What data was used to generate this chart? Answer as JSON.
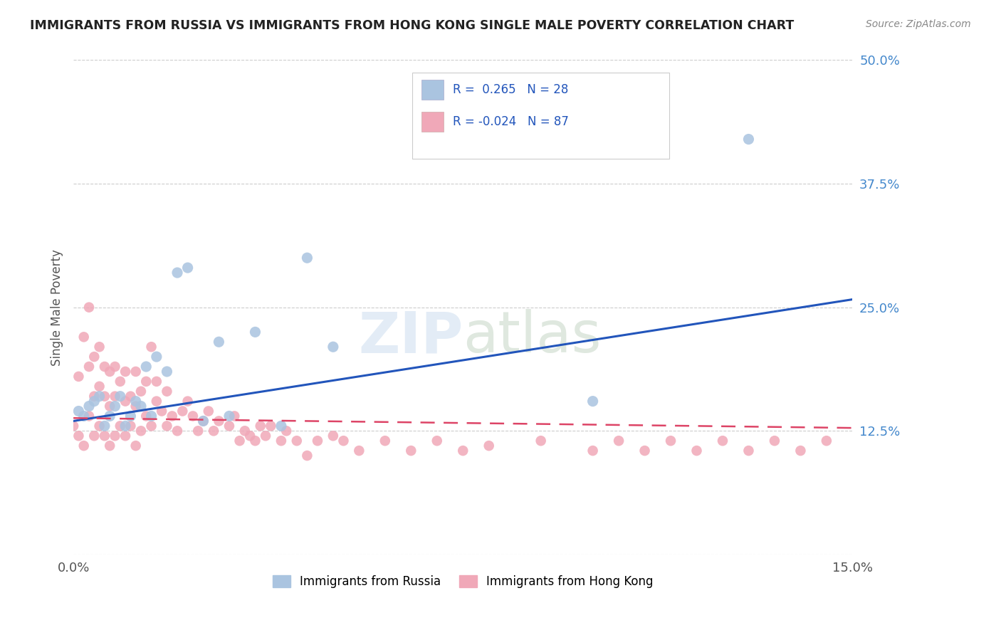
{
  "title": "IMMIGRANTS FROM RUSSIA VS IMMIGRANTS FROM HONG KONG SINGLE MALE POVERTY CORRELATION CHART",
  "source": "Source: ZipAtlas.com",
  "ylabel": "Single Male Poverty",
  "xlim": [
    0.0,
    0.15
  ],
  "ylim": [
    0.0,
    0.5
  ],
  "yticks_right": [
    0.0,
    0.125,
    0.25,
    0.375,
    0.5
  ],
  "ytick_right_labels": [
    "",
    "12.5%",
    "25.0%",
    "37.5%",
    "50.0%"
  ],
  "russia_R": 0.265,
  "russia_N": 28,
  "hk_R": -0.024,
  "hk_N": 87,
  "russia_color": "#aac4e0",
  "hk_color": "#f0a8b8",
  "russia_line_color": "#2255bb",
  "hk_line_color": "#dd4466",
  "legend_russia": "Immigrants from Russia",
  "legend_hk": "Immigrants from Hong Kong",
  "russia_x": [
    0.001,
    0.002,
    0.003,
    0.004,
    0.005,
    0.006,
    0.007,
    0.008,
    0.009,
    0.01,
    0.011,
    0.012,
    0.013,
    0.014,
    0.015,
    0.016,
    0.018,
    0.02,
    0.022,
    0.025,
    0.028,
    0.03,
    0.035,
    0.04,
    0.045,
    0.05,
    0.1,
    0.13
  ],
  "russia_y": [
    0.145,
    0.14,
    0.15,
    0.155,
    0.16,
    0.13,
    0.14,
    0.15,
    0.16,
    0.13,
    0.14,
    0.155,
    0.15,
    0.19,
    0.14,
    0.2,
    0.185,
    0.285,
    0.29,
    0.135,
    0.215,
    0.14,
    0.225,
    0.13,
    0.3,
    0.21,
    0.155,
    0.42
  ],
  "hk_x": [
    0.0,
    0.001,
    0.001,
    0.002,
    0.002,
    0.003,
    0.003,
    0.003,
    0.004,
    0.004,
    0.004,
    0.005,
    0.005,
    0.005,
    0.006,
    0.006,
    0.006,
    0.007,
    0.007,
    0.007,
    0.008,
    0.008,
    0.008,
    0.009,
    0.009,
    0.01,
    0.01,
    0.01,
    0.011,
    0.011,
    0.012,
    0.012,
    0.012,
    0.013,
    0.013,
    0.014,
    0.014,
    0.015,
    0.015,
    0.016,
    0.016,
    0.017,
    0.018,
    0.018,
    0.019,
    0.02,
    0.021,
    0.022,
    0.023,
    0.024,
    0.025,
    0.026,
    0.027,
    0.028,
    0.03,
    0.031,
    0.032,
    0.033,
    0.034,
    0.035,
    0.036,
    0.037,
    0.038,
    0.04,
    0.041,
    0.043,
    0.045,
    0.047,
    0.05,
    0.052,
    0.055,
    0.06,
    0.065,
    0.07,
    0.075,
    0.08,
    0.09,
    0.1,
    0.105,
    0.11,
    0.115,
    0.12,
    0.125,
    0.13,
    0.135,
    0.14,
    0.145
  ],
  "hk_y": [
    0.13,
    0.12,
    0.18,
    0.11,
    0.22,
    0.14,
    0.19,
    0.25,
    0.12,
    0.16,
    0.2,
    0.13,
    0.17,
    0.21,
    0.12,
    0.16,
    0.19,
    0.11,
    0.15,
    0.185,
    0.12,
    0.16,
    0.19,
    0.13,
    0.175,
    0.12,
    0.155,
    0.185,
    0.13,
    0.16,
    0.11,
    0.15,
    0.185,
    0.125,
    0.165,
    0.14,
    0.175,
    0.21,
    0.13,
    0.155,
    0.175,
    0.145,
    0.13,
    0.165,
    0.14,
    0.125,
    0.145,
    0.155,
    0.14,
    0.125,
    0.135,
    0.145,
    0.125,
    0.135,
    0.13,
    0.14,
    0.115,
    0.125,
    0.12,
    0.115,
    0.13,
    0.12,
    0.13,
    0.115,
    0.125,
    0.115,
    0.1,
    0.115,
    0.12,
    0.115,
    0.105,
    0.115,
    0.105,
    0.115,
    0.105,
    0.11,
    0.115,
    0.105,
    0.115,
    0.105,
    0.115,
    0.105,
    0.115,
    0.105,
    0.115,
    0.105,
    0.115
  ],
  "russia_line_x": [
    0.0,
    0.15
  ],
  "russia_line_y": [
    0.135,
    0.258
  ],
  "hk_line_x": [
    0.0,
    0.15
  ],
  "hk_line_y": [
    0.138,
    0.128
  ]
}
